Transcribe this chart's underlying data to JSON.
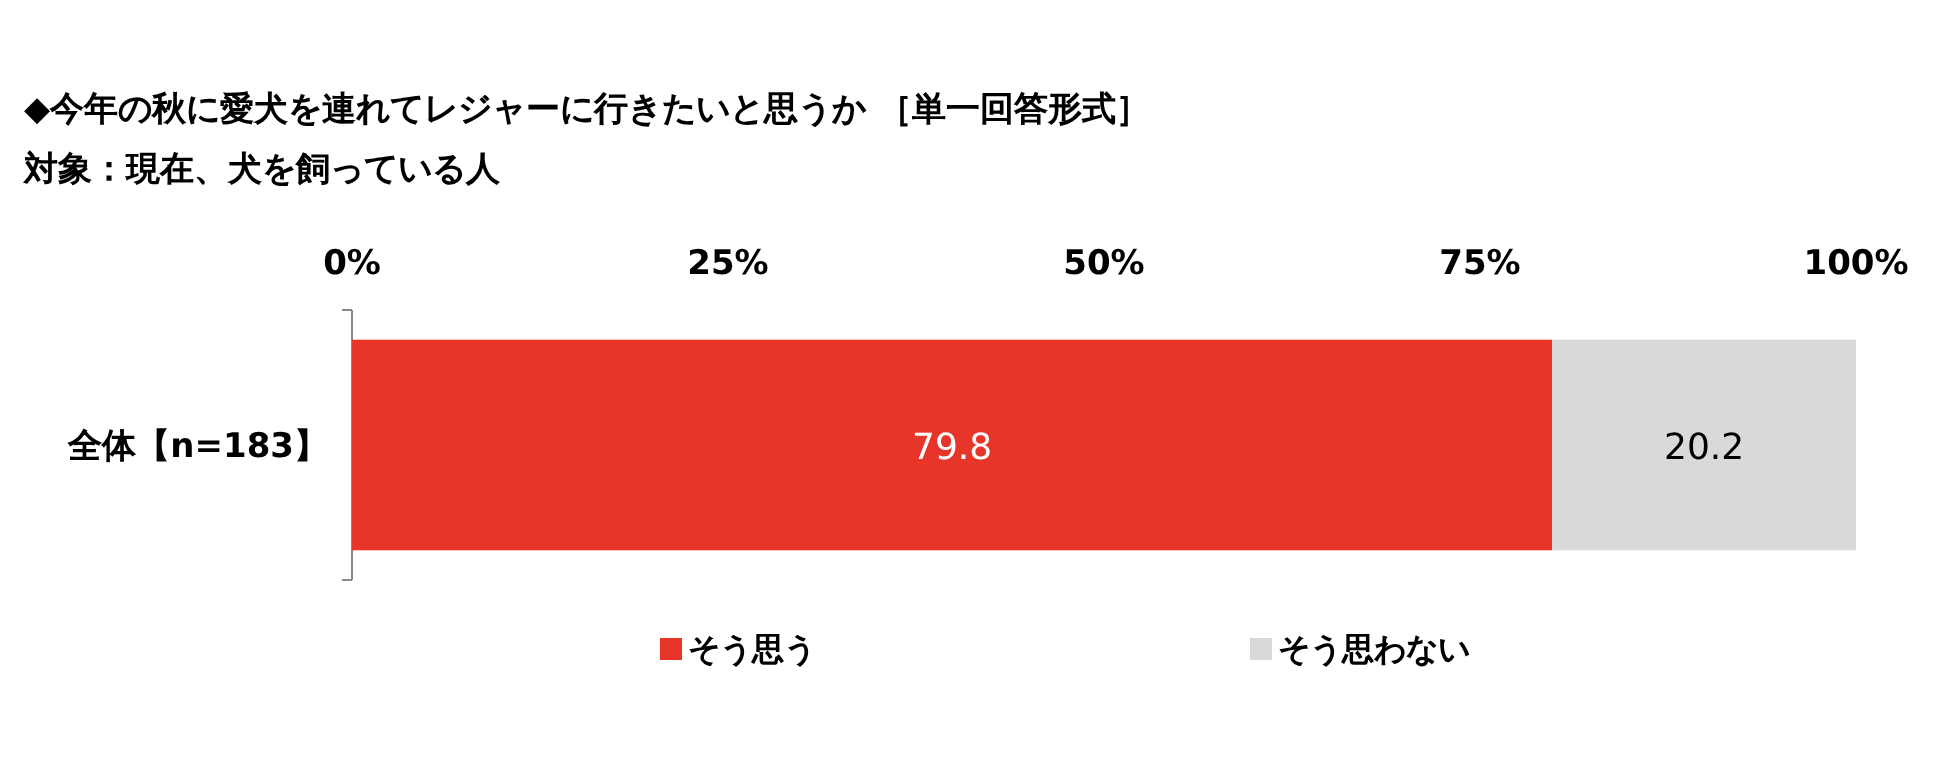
{
  "chart_data": {
    "type": "bar",
    "title": "◆今年の秋に愛犬を連れてレジャーに行きたいと思うか ［単一回答形式］",
    "subtitle": "対象：現在、犬を飼っている人",
    "categories": [
      "全体【n=183】"
    ],
    "series": [
      {
        "name": "そう思う",
        "color": "#e8352a",
        "values": [
          79.8
        ]
      },
      {
        "name": "そう思わない",
        "color": "#d9d9d9",
        "values": [
          20.2
        ]
      }
    ],
    "stacked": true,
    "orientation": "horizontal",
    "xlim": [
      0,
      100
    ],
    "xticks": [
      {
        "value": 0,
        "label": "0%"
      },
      {
        "value": 25,
        "label": "25%"
      },
      {
        "value": 50,
        "label": "50%"
      },
      {
        "value": 75,
        "label": "75%"
      },
      {
        "value": 100,
        "label": "100%"
      }
    ],
    "data_labels": true,
    "legend": "bottom"
  }
}
